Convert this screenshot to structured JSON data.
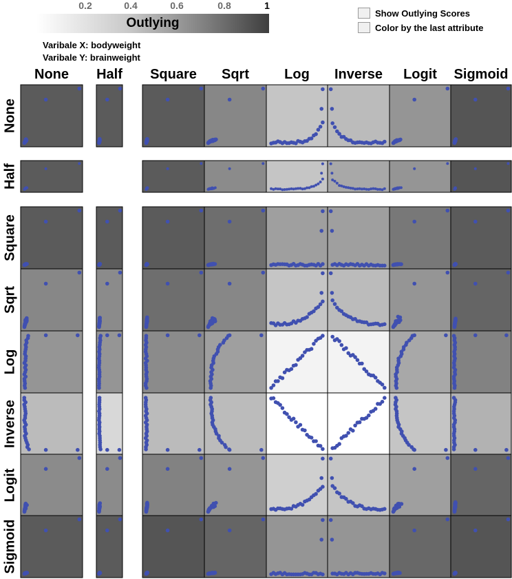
{
  "legend": {
    "title": "Outlying",
    "ticks": [
      "0.2",
      "0.4",
      "0.6",
      "0.8",
      "1"
    ]
  },
  "variables": {
    "x_label": "Varibale X: bodyweight",
    "y_label": "Varibale Y: brainweight"
  },
  "checkboxes": [
    {
      "label": "Show Outlying Scores",
      "checked": false
    },
    {
      "label": "Color by the last attribute",
      "checked": false
    }
  ],
  "colors": {
    "points": "#4050b0",
    "border": "#000000"
  },
  "chart_data": {
    "type": "scatter",
    "title": "",
    "description_fields": {
      "metric": "Outlying"
    },
    "columns": [
      "None",
      "Half",
      "Square",
      "Sqrt",
      "Log",
      "Inverse",
      "Logit",
      "Sigmoid"
    ],
    "rows": [
      "None",
      "Half",
      "Square",
      "Sqrt",
      "Log",
      "Inverse",
      "Logit",
      "Sigmoid"
    ],
    "outlying_scores": [
      [
        0.85,
        0.85,
        0.85,
        0.62,
        0.3,
        0.35,
        0.55,
        0.88
      ],
      [
        0.85,
        null,
        0.85,
        0.6,
        0.3,
        0.45,
        0.55,
        0.88
      ],
      [
        0.85,
        0.85,
        0.85,
        0.75,
        0.5,
        0.5,
        0.7,
        0.85
      ],
      [
        0.62,
        0.6,
        0.75,
        0.62,
        0.3,
        0.35,
        0.55,
        0.8
      ],
      [
        0.55,
        0.55,
        0.6,
        0.5,
        0.06,
        0.06,
        0.45,
        0.65
      ],
      [
        0.35,
        0.2,
        0.35,
        0.35,
        0.0,
        0.0,
        0.3,
        0.4
      ],
      [
        0.6,
        0.6,
        0.65,
        0.55,
        0.25,
        0.3,
        0.5,
        0.8
      ],
      [
        0.85,
        0.85,
        0.88,
        0.8,
        0.55,
        0.55,
        0.78,
        0.88
      ]
    ]
  }
}
